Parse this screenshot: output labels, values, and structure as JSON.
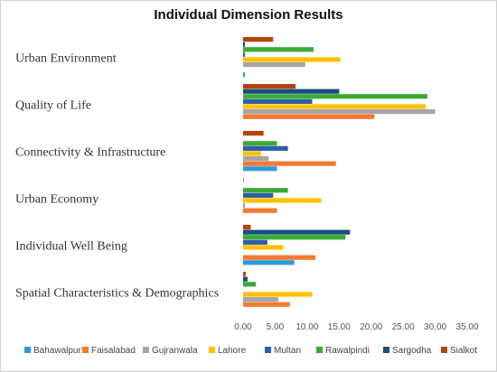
{
  "chart_data": {
    "type": "bar",
    "orientation": "horizontal",
    "title": "Individual Dimension Results",
    "xlabel": "",
    "ylabel": "",
    "xlim": [
      0,
      35
    ],
    "x_ticks": [
      "0.00",
      "5.00",
      "10.00",
      "15.00",
      "20.00",
      "25.00",
      "30.00",
      "35.00"
    ],
    "grid": false,
    "legend_position": "bottom",
    "categories": [
      "Urban Environment",
      "Quality of Life",
      "Connectivity & Infrastructure",
      "Urban Economy",
      "Individual Well Being",
      "Spatial Characteristics & Demographics"
    ],
    "series": [
      {
        "name": "Bahawalpur",
        "color": "#2E9BD6",
        "values": [
          0.3,
          0,
          5.3,
          0,
          8.0,
          0
        ]
      },
      {
        "name": "Faisalabad",
        "color": "#F47A32",
        "values": [
          0,
          20.5,
          14.5,
          5.3,
          11.3,
          7.3
        ]
      },
      {
        "name": "Gujranwala",
        "color": "#A5A5A5",
        "values": [
          9.7,
          30.0,
          4.0,
          0.3,
          0,
          5.5
        ]
      },
      {
        "name": "Lahore",
        "color": "#FFC000",
        "values": [
          15.2,
          28.5,
          2.8,
          12.2,
          6.3,
          10.8
        ]
      },
      {
        "name": "Multan",
        "color": "#2E5FA8",
        "values": [
          0.3,
          10.8,
          7.0,
          4.7,
          3.8,
          0
        ]
      },
      {
        "name": "Rawalpindi",
        "color": "#3BAA35",
        "values": [
          11.0,
          28.8,
          5.3,
          7.0,
          16.0,
          2.0
        ]
      },
      {
        "name": "Sargodha",
        "color": "#16507E",
        "values": [
          0.3,
          15.0,
          0,
          0,
          16.7,
          0.7
        ]
      },
      {
        "name": "Sialkot",
        "color": "#B5430E",
        "values": [
          4.7,
          8.2,
          3.2,
          0.1,
          1.2,
          0.4
        ]
      }
    ]
  }
}
